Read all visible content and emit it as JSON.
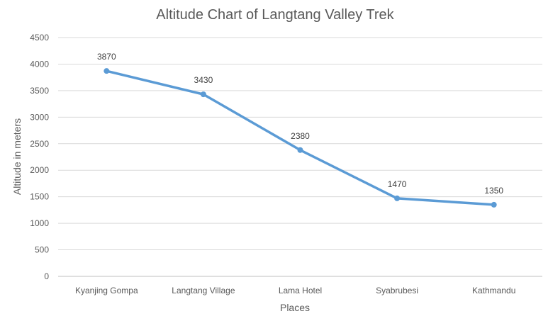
{
  "chart_data": {
    "type": "line",
    "title": "Altitude Chart of Langtang Valley Trek",
    "xlabel": "Places",
    "ylabel": "Altitude in meters",
    "categories": [
      "Kyanjing Gompa",
      "Langtang Village",
      "Lama Hotel",
      "Syabrubesi",
      "Kathmandu"
    ],
    "series": [
      {
        "values": [
          3870,
          3430,
          2380,
          1470,
          1350
        ]
      }
    ],
    "ylim": [
      0,
      4500
    ],
    "yticks": [
      0,
      500,
      1000,
      1500,
      2000,
      2500,
      3000,
      3500,
      4000,
      4500
    ],
    "grid": true,
    "legend": "none",
    "colors": {
      "line": "#5b9bd5"
    }
  }
}
